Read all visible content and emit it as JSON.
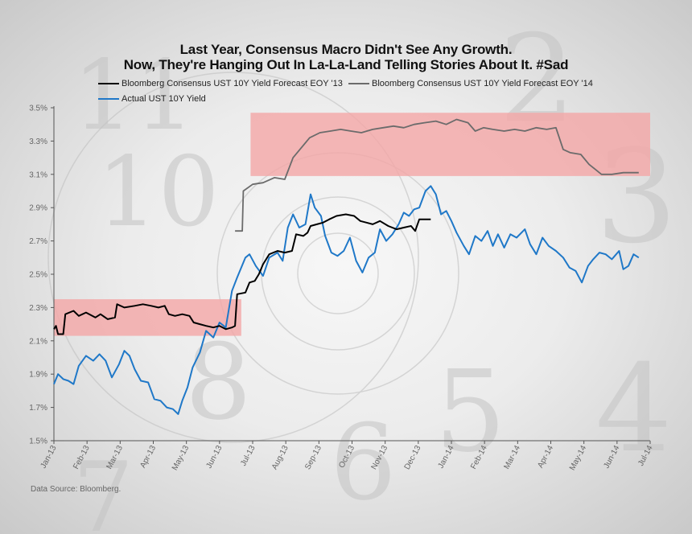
{
  "title_line1": "Last Year, Consensus Macro Didn't See Any Growth.",
  "title_line2": "Now, They're Hanging Out In La-La-Land Telling Stories About It. #Sad",
  "source": "Data Source: Bloomberg.",
  "colors": {
    "forecast13": "#000000",
    "forecast14": "#6b6b6b",
    "actual": "#1f78c8",
    "band": "#f4a6a6"
  },
  "chart_data": {
    "type": "line",
    "title": "Last Year, Consensus Macro Didn't See Any Growth. Now, They're Hanging Out In La-La-Land Telling Stories About It. #Sad",
    "xlabel": "",
    "ylabel": "",
    "ylim": [
      1.5,
      3.5
    ],
    "xlim": [
      "2013-01-01",
      "2014-07-31"
    ],
    "grid": false,
    "legend_position": "top",
    "yticks": [
      "1.5%",
      "1.7%",
      "1.9%",
      "2.1%",
      "2.3%",
      "2.5%",
      "2.7%",
      "2.9%",
      "3.1%",
      "3.3%",
      "3.5%"
    ],
    "xticks": [
      "Jan-13",
      "Feb-13",
      "Mar-13",
      "Apr-13",
      "May-13",
      "Jun-13",
      "Jul-13",
      "Aug-13",
      "Sep-13",
      "Oct-13",
      "Nov-13",
      "Dec-13",
      "Jan-14",
      "Feb-14",
      "Mar-14",
      "Apr-14",
      "May-14",
      "Jun-14",
      "Jul-14"
    ],
    "bands": [
      {
        "x0": "2013-01-01",
        "x1": "2013-07-01",
        "y0": 2.13,
        "y1": 2.35
      },
      {
        "x0": "2013-07-10",
        "x1": "2014-07-31",
        "y0": 3.09,
        "y1": 3.47
      }
    ],
    "series": [
      {
        "name": "Bloomberg Consensus UST 10Y Yield Forecast EOY '13",
        "points": [
          [
            "2013-01-01",
            2.17
          ],
          [
            "2013-01-03",
            2.19
          ],
          [
            "2013-01-05",
            2.14
          ],
          [
            "2013-01-10",
            2.14
          ],
          [
            "2013-01-12",
            2.26
          ],
          [
            "2013-01-20",
            2.28
          ],
          [
            "2013-01-25",
            2.25
          ],
          [
            "2013-02-01",
            2.27
          ],
          [
            "2013-02-10",
            2.24
          ],
          [
            "2013-02-15",
            2.26
          ],
          [
            "2013-02-22",
            2.23
          ],
          [
            "2013-03-01",
            2.24
          ],
          [
            "2013-03-03",
            2.32
          ],
          [
            "2013-03-10",
            2.3
          ],
          [
            "2013-03-20",
            2.31
          ],
          [
            "2013-03-28",
            2.32
          ],
          [
            "2013-04-05",
            2.31
          ],
          [
            "2013-04-12",
            2.3
          ],
          [
            "2013-04-18",
            2.31
          ],
          [
            "2013-04-22",
            2.26
          ],
          [
            "2013-04-28",
            2.25
          ],
          [
            "2013-05-05",
            2.26
          ],
          [
            "2013-05-12",
            2.25
          ],
          [
            "2013-05-16",
            2.21
          ],
          [
            "2013-05-22",
            2.2
          ],
          [
            "2013-05-28",
            2.19
          ],
          [
            "2013-06-04",
            2.18
          ],
          [
            "2013-06-10",
            2.19
          ],
          [
            "2013-06-16",
            2.17
          ],
          [
            "2013-06-22",
            2.18
          ],
          [
            "2013-06-25",
            2.19
          ],
          [
            "2013-06-27",
            2.38
          ],
          [
            "2013-07-05",
            2.39
          ],
          [
            "2013-07-09",
            2.45
          ],
          [
            "2013-07-14",
            2.46
          ],
          [
            "2013-07-18",
            2.5
          ],
          [
            "2013-07-22",
            2.56
          ],
          [
            "2013-07-28",
            2.62
          ],
          [
            "2013-08-05",
            2.64
          ],
          [
            "2013-08-12",
            2.63
          ],
          [
            "2013-08-19",
            2.64
          ],
          [
            "2013-08-23",
            2.74
          ],
          [
            "2013-08-30",
            2.73
          ],
          [
            "2013-09-03",
            2.75
          ],
          [
            "2013-09-06",
            2.79
          ],
          [
            "2013-09-12",
            2.8
          ],
          [
            "2013-09-18",
            2.81
          ],
          [
            "2013-09-24",
            2.83
          ],
          [
            "2013-10-01",
            2.85
          ],
          [
            "2013-10-10",
            2.86
          ],
          [
            "2013-10-18",
            2.85
          ],
          [
            "2013-10-24",
            2.82
          ],
          [
            "2013-10-30",
            2.81
          ],
          [
            "2013-11-05",
            2.8
          ],
          [
            "2013-11-12",
            2.82
          ],
          [
            "2013-11-20",
            2.79
          ],
          [
            "2013-11-28",
            2.77
          ],
          [
            "2013-12-05",
            2.78
          ],
          [
            "2013-12-12",
            2.79
          ],
          [
            "2013-12-16",
            2.76
          ],
          [
            "2013-12-20",
            2.83
          ],
          [
            "2013-12-31",
            2.83
          ]
        ]
      },
      {
        "name": "Bloomberg Consensus UST 10Y Yield Forecast EOY '14",
        "points": [
          [
            "2013-06-25",
            2.76
          ],
          [
            "2013-07-02",
            2.76
          ],
          [
            "2013-07-03",
            3.0
          ],
          [
            "2013-07-12",
            3.04
          ],
          [
            "2013-07-22",
            3.05
          ],
          [
            "2013-08-02",
            3.08
          ],
          [
            "2013-08-12",
            3.07
          ],
          [
            "2013-08-20",
            3.2
          ],
          [
            "2013-08-28",
            3.26
          ],
          [
            "2013-09-05",
            3.32
          ],
          [
            "2013-09-15",
            3.35
          ],
          [
            "2013-09-25",
            3.36
          ],
          [
            "2013-10-05",
            3.37
          ],
          [
            "2013-10-15",
            3.36
          ],
          [
            "2013-10-25",
            3.35
          ],
          [
            "2013-11-05",
            3.37
          ],
          [
            "2013-11-15",
            3.38
          ],
          [
            "2013-11-25",
            3.39
          ],
          [
            "2013-12-05",
            3.38
          ],
          [
            "2013-12-15",
            3.4
          ],
          [
            "2013-12-25",
            3.41
          ],
          [
            "2014-01-05",
            3.42
          ],
          [
            "2014-01-15",
            3.4
          ],
          [
            "2014-01-25",
            3.43
          ],
          [
            "2014-02-05",
            3.41
          ],
          [
            "2014-02-12",
            3.36
          ],
          [
            "2014-02-20",
            3.38
          ],
          [
            "2014-03-01",
            3.37
          ],
          [
            "2014-03-12",
            3.36
          ],
          [
            "2014-03-22",
            3.37
          ],
          [
            "2014-04-01",
            3.36
          ],
          [
            "2014-04-12",
            3.38
          ],
          [
            "2014-04-22",
            3.37
          ],
          [
            "2014-05-01",
            3.38
          ],
          [
            "2014-05-08",
            3.25
          ],
          [
            "2014-05-15",
            3.23
          ],
          [
            "2014-05-25",
            3.22
          ],
          [
            "2014-06-02",
            3.16
          ],
          [
            "2014-06-08",
            3.13
          ],
          [
            "2014-06-14",
            3.1
          ],
          [
            "2014-06-24",
            3.1
          ],
          [
            "2014-07-05",
            3.11
          ],
          [
            "2014-07-20",
            3.11
          ]
        ]
      },
      {
        "name": "Actual UST 10Y Yield",
        "points": [
          [
            "2013-01-01",
            1.84
          ],
          [
            "2013-01-05",
            1.9
          ],
          [
            "2013-01-10",
            1.87
          ],
          [
            "2013-01-15",
            1.86
          ],
          [
            "2013-01-20",
            1.84
          ],
          [
            "2013-01-25",
            1.95
          ],
          [
            "2013-02-01",
            2.01
          ],
          [
            "2013-02-08",
            1.98
          ],
          [
            "2013-02-14",
            2.02
          ],
          [
            "2013-02-20",
            1.98
          ],
          [
            "2013-02-26",
            1.88
          ],
          [
            "2013-03-05",
            1.96
          ],
          [
            "2013-03-10",
            2.04
          ],
          [
            "2013-03-15",
            2.01
          ],
          [
            "2013-03-20",
            1.93
          ],
          [
            "2013-03-26",
            1.86
          ],
          [
            "2013-04-02",
            1.85
          ],
          [
            "2013-04-08",
            1.75
          ],
          [
            "2013-04-14",
            1.74
          ],
          [
            "2013-04-20",
            1.7
          ],
          [
            "2013-04-26",
            1.69
          ],
          [
            "2013-05-01",
            1.66
          ],
          [
            "2013-05-05",
            1.74
          ],
          [
            "2013-05-10",
            1.82
          ],
          [
            "2013-05-15",
            1.94
          ],
          [
            "2013-05-22",
            2.03
          ],
          [
            "2013-05-28",
            2.16
          ],
          [
            "2013-06-04",
            2.12
          ],
          [
            "2013-06-10",
            2.21
          ],
          [
            "2013-06-16",
            2.18
          ],
          [
            "2013-06-22",
            2.4
          ],
          [
            "2013-06-27",
            2.48
          ],
          [
            "2013-07-05",
            2.6
          ],
          [
            "2013-07-09",
            2.62
          ],
          [
            "2013-07-15",
            2.55
          ],
          [
            "2013-07-22",
            2.49
          ],
          [
            "2013-07-28",
            2.6
          ],
          [
            "2013-08-05",
            2.63
          ],
          [
            "2013-08-10",
            2.58
          ],
          [
            "2013-08-15",
            2.78
          ],
          [
            "2013-08-20",
            2.86
          ],
          [
            "2013-08-26",
            2.78
          ],
          [
            "2013-09-01",
            2.8
          ],
          [
            "2013-09-06",
            2.98
          ],
          [
            "2013-09-10",
            2.9
          ],
          [
            "2013-09-16",
            2.85
          ],
          [
            "2013-09-20",
            2.73
          ],
          [
            "2013-09-26",
            2.63
          ],
          [
            "2013-10-02",
            2.61
          ],
          [
            "2013-10-08",
            2.64
          ],
          [
            "2013-10-14",
            2.72
          ],
          [
            "2013-10-20",
            2.58
          ],
          [
            "2013-10-26",
            2.51
          ],
          [
            "2013-11-01",
            2.6
          ],
          [
            "2013-11-07",
            2.63
          ],
          [
            "2013-11-12",
            2.77
          ],
          [
            "2013-11-18",
            2.7
          ],
          [
            "2013-11-24",
            2.74
          ],
          [
            "2013-11-30",
            2.8
          ],
          [
            "2013-12-05",
            2.87
          ],
          [
            "2013-12-10",
            2.85
          ],
          [
            "2013-12-15",
            2.89
          ],
          [
            "2013-12-20",
            2.9
          ],
          [
            "2013-12-26",
            3.0
          ],
          [
            "2013-12-31",
            3.03
          ],
          [
            "2014-01-05",
            2.98
          ],
          [
            "2014-01-10",
            2.86
          ],
          [
            "2014-01-15",
            2.88
          ],
          [
            "2014-01-20",
            2.82
          ],
          [
            "2014-01-25",
            2.75
          ],
          [
            "2014-02-01",
            2.67
          ],
          [
            "2014-02-06",
            2.62
          ],
          [
            "2014-02-12",
            2.73
          ],
          [
            "2014-02-18",
            2.7
          ],
          [
            "2014-02-24",
            2.76
          ],
          [
            "2014-03-01",
            2.67
          ],
          [
            "2014-03-06",
            2.74
          ],
          [
            "2014-03-12",
            2.66
          ],
          [
            "2014-03-18",
            2.74
          ],
          [
            "2014-03-24",
            2.72
          ],
          [
            "2014-04-01",
            2.77
          ],
          [
            "2014-04-06",
            2.68
          ],
          [
            "2014-04-12",
            2.62
          ],
          [
            "2014-04-18",
            2.72
          ],
          [
            "2014-04-24",
            2.67
          ],
          [
            "2014-05-01",
            2.64
          ],
          [
            "2014-05-08",
            2.6
          ],
          [
            "2014-05-14",
            2.54
          ],
          [
            "2014-05-20",
            2.52
          ],
          [
            "2014-05-26",
            2.45
          ],
          [
            "2014-06-01",
            2.55
          ],
          [
            "2014-06-06",
            2.59
          ],
          [
            "2014-06-12",
            2.63
          ],
          [
            "2014-06-18",
            2.62
          ],
          [
            "2014-06-24",
            2.59
          ],
          [
            "2014-07-01",
            2.64
          ],
          [
            "2014-07-05",
            2.53
          ],
          [
            "2014-07-10",
            2.55
          ],
          [
            "2014-07-15",
            2.62
          ],
          [
            "2014-07-20",
            2.6
          ]
        ]
      }
    ]
  }
}
